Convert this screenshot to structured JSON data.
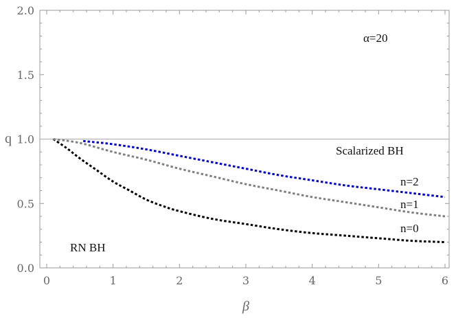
{
  "chart_data": {
    "type": "line",
    "title": "",
    "xlabel": "β",
    "ylabel": "q",
    "xlim": [
      0,
      6.1
    ],
    "ylim": [
      0,
      2.0
    ],
    "xticks": [
      0,
      1,
      2,
      3,
      4,
      5,
      6
    ],
    "yticks": [
      0.0,
      0.5,
      1.0,
      1.5,
      2.0
    ],
    "x_tick_labels": [
      "0",
      "1",
      "2",
      "3",
      "4",
      "5",
      "6"
    ],
    "y_tick_labels": [
      "0.0",
      "0.5",
      "1.0",
      "1.5",
      "2.0"
    ],
    "grid": false,
    "reference_line": {
      "y": 1.0,
      "color": "#aaaaaa"
    },
    "series": [
      {
        "name": "n=0",
        "color": "#000000",
        "style": "dotted",
        "x": [
          0.1,
          0.3,
          0.5,
          0.75,
          1.0,
          1.25,
          1.5,
          1.75,
          2.0,
          2.5,
          3.0,
          3.5,
          4.0,
          4.5,
          5.0,
          5.5,
          6.0
        ],
        "y": [
          1.0,
          0.93,
          0.85,
          0.76,
          0.67,
          0.6,
          0.53,
          0.48,
          0.44,
          0.38,
          0.34,
          0.3,
          0.27,
          0.25,
          0.23,
          0.21,
          0.2
        ]
      },
      {
        "name": "n=1",
        "color": "#808080",
        "style": "dotted",
        "x": [
          0.1,
          0.5,
          1.0,
          1.5,
          2.0,
          2.5,
          3.0,
          3.5,
          4.0,
          4.5,
          5.0,
          5.5,
          6.0
        ],
        "y": [
          1.0,
          0.97,
          0.9,
          0.84,
          0.77,
          0.71,
          0.65,
          0.6,
          0.55,
          0.51,
          0.47,
          0.43,
          0.4
        ]
      },
      {
        "name": "n=2",
        "color": "#0000cc",
        "style": "dotted",
        "x": [
          0.55,
          1.0,
          1.5,
          2.0,
          2.5,
          3.0,
          3.5,
          4.0,
          4.5,
          5.0,
          5.5,
          6.0
        ],
        "y": [
          0.985,
          0.96,
          0.92,
          0.87,
          0.82,
          0.77,
          0.72,
          0.68,
          0.64,
          0.61,
          0.58,
          0.55
        ]
      }
    ],
    "annotations": {
      "alpha": "α=20",
      "scalarized": "Scalarized BH",
      "rn": "RN BH",
      "n2": "n=2",
      "n1": "n=1",
      "n0": "n=0"
    }
  }
}
